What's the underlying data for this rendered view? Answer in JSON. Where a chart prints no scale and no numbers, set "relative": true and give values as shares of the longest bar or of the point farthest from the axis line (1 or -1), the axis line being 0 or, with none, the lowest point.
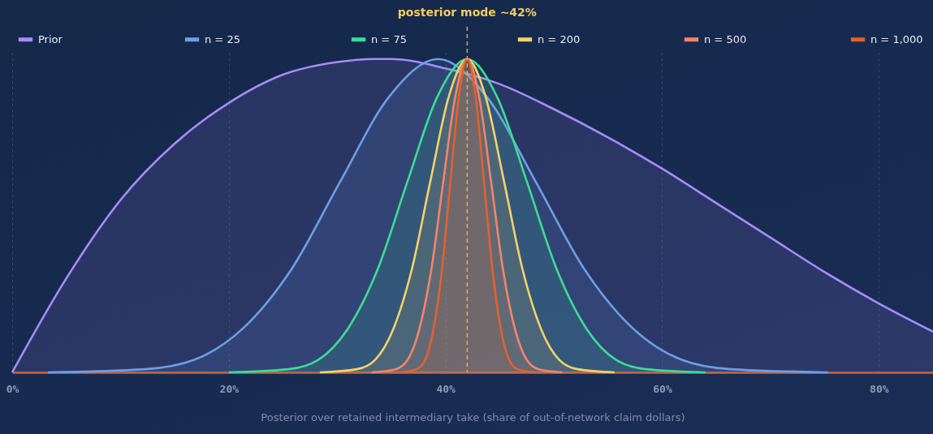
{
  "chart_data": {
    "type": "area",
    "relative": true,
    "xlabel": "Posterior over retained intermediary take (share of out-of-network claim dollars)",
    "xlim": [
      0,
      85
    ],
    "xticks": [
      {
        "value": 0,
        "label": "0%"
      },
      {
        "value": 20,
        "label": "20%"
      },
      {
        "value": 40,
        "label": "40%"
      },
      {
        "value": 60,
        "label": "60%"
      },
      {
        "value": 80,
        "label": "80%"
      }
    ],
    "grid": "x",
    "legend": "top",
    "ref_lines": [
      {
        "axis": "x",
        "value": 42,
        "label": "posterior mode ~42%",
        "color": "#f2cc5e",
        "line_style": "dashed"
      }
    ],
    "series": [
      {
        "name": "Prior",
        "color": "#a78bfa",
        "x": [
          0,
          5,
          10,
          15,
          20,
          25,
          30,
          33.3,
          35,
          40,
          45,
          50,
          55,
          60,
          65,
          70,
          75,
          80,
          85
        ],
        "values": [
          0,
          0.3,
          0.55,
          0.73,
          0.86,
          0.95,
          0.99,
          1,
          1,
          0.97,
          0.92,
          0.84,
          0.75,
          0.65,
          0.54,
          0.43,
          0.32,
          0.22,
          0.13
        ]
      },
      {
        "name": "n = 25",
        "color": "#6c9fe6",
        "x": [
          3.3,
          12.3,
          16.8,
          21.3,
          25.8,
          30.3,
          34.8,
          39.3,
          43.8,
          48.3,
          52.8,
          57.3,
          61.8,
          66.3,
          75.3
        ],
        "values": [
          0,
          0.01,
          0.04,
          0.14,
          0.33,
          0.61,
          0.88,
          1,
          0.88,
          0.61,
          0.33,
          0.14,
          0.04,
          0.01,
          0
        ]
      },
      {
        "name": "n = 75",
        "color": "#3ddc97",
        "x": [
          20,
          25.5,
          28.25,
          31,
          33.75,
          36.5,
          39.25,
          42,
          44.75,
          47.5,
          50.25,
          53,
          55.75,
          58.5,
          64
        ],
        "values": [
          0,
          0.01,
          0.04,
          0.14,
          0.33,
          0.61,
          0.88,
          1,
          0.88,
          0.61,
          0.33,
          0.14,
          0.04,
          0.01,
          0
        ]
      },
      {
        "name": "n = 200",
        "color": "#f2d36b",
        "x": [
          28.4,
          31.8,
          33.5,
          35.2,
          36.9,
          38.6,
          40.3,
          42,
          43.7,
          45.4,
          47.1,
          48.8,
          50.5,
          52.2,
          55.6
        ],
        "values": [
          0,
          0.01,
          0.04,
          0.14,
          0.33,
          0.61,
          0.88,
          1,
          0.88,
          0.61,
          0.33,
          0.14,
          0.04,
          0.01,
          0
        ]
      },
      {
        "name": "n = 500",
        "color": "#f4846a",
        "x": [
          33.2,
          35.4,
          36.5,
          37.6,
          38.7,
          39.8,
          40.9,
          42,
          43.1,
          44.2,
          45.3,
          46.4,
          47.5,
          48.6,
          50.8
        ],
        "values": [
          0,
          0.01,
          0.04,
          0.14,
          0.33,
          0.61,
          0.88,
          1,
          0.88,
          0.61,
          0.33,
          0.14,
          0.04,
          0.01,
          0
        ]
      },
      {
        "name": "n = 1,000",
        "color": "#e2622e",
        "x": [
          35.8,
          37.35,
          38.13,
          38.9,
          39.68,
          40.45,
          41.23,
          42,
          42.78,
          43.55,
          44.33,
          45.1,
          45.88,
          46.65,
          48.2
        ],
        "values": [
          0,
          0.01,
          0.04,
          0.14,
          0.33,
          0.61,
          0.88,
          1,
          0.88,
          0.61,
          0.33,
          0.14,
          0.04,
          0.01,
          0
        ]
      }
    ]
  }
}
